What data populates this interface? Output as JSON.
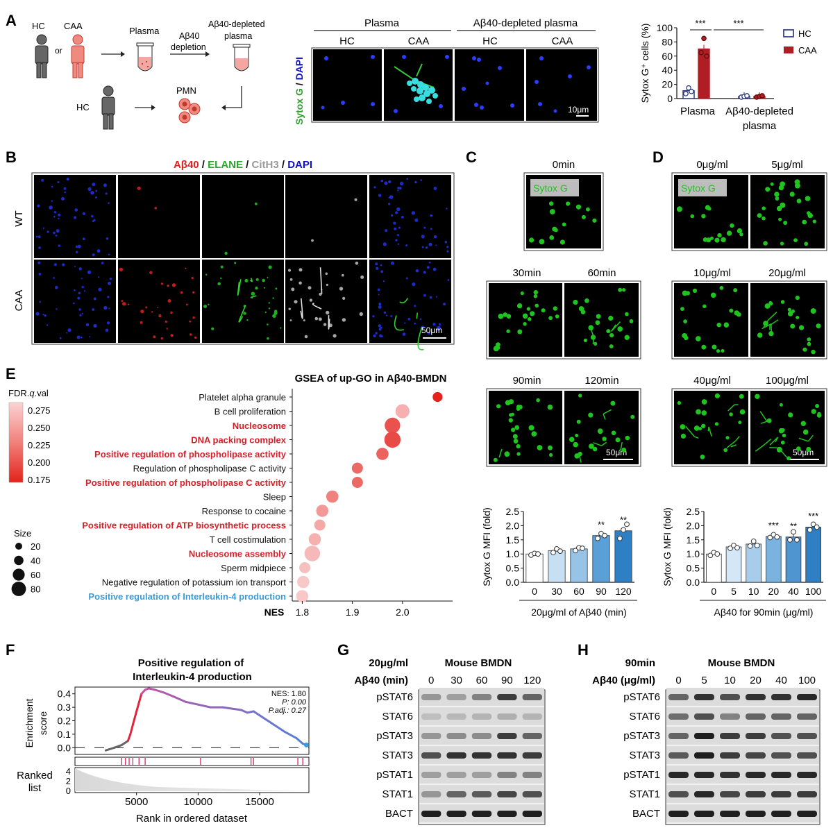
{
  "panels": {
    "A": "A",
    "B": "B",
    "C": "C",
    "D": "D",
    "E": "E",
    "F": "F",
    "G": "G",
    "H": "H"
  },
  "colors": {
    "caa_red": "#b01e25",
    "hc_blue": "#1f2d7a",
    "stain_green": "#1fc41f",
    "dapi_blue": "#1010c8",
    "nes_dark": "#e3231c",
    "nes_light": "#f8c8c8",
    "blue_scale": "#3a86c8",
    "gsea_blue": "#3a9bd9",
    "gsea_purple": "#9b59b6"
  },
  "panelA": {
    "hc": "HC",
    "caa": "CAA",
    "or": "or",
    "plasma": "Plasma",
    "depletion_line1": "Aβ40",
    "depletion_line2": "depletion",
    "depleted_plasma_line1": "Aβ40-depleted",
    "depleted_plasma_line2": "plasma",
    "pmn": "PMN",
    "hc2": "HC",
    "micro_group1": "Plasma",
    "micro_group2": "Aβ40-depleted plasma",
    "micro_cols": [
      "HC",
      "CAA",
      "HC",
      "CAA"
    ],
    "stain_green": "Sytox G",
    "stain_sep": " / ",
    "stain_blue": "DAPI",
    "scalebar": "10μm"
  },
  "chart_data": [
    {
      "id": "A-bar",
      "type": "bar",
      "ylabel": "Sytox G⁺ cells (%)",
      "ylim": [
        0,
        100
      ],
      "yticks": [
        "0",
        "20",
        "40",
        "60",
        "80",
        "100"
      ],
      "categories": [
        "Plasma",
        "Aβ40-depleted plasma"
      ],
      "series": [
        {
          "name": "HC",
          "values": [
            11,
            3
          ],
          "points": [
            [
              7,
              15,
              10
            ],
            [
              2,
              3,
              4
            ]
          ]
        },
        {
          "name": "CAA",
          "values": [
            70,
            3
          ],
          "points": [
            [
              65,
              85,
              60
            ],
            [
              2,
              3,
              4
            ]
          ]
        }
      ],
      "sig": [
        "***",
        "***"
      ],
      "legend": [
        "HC",
        "CAA"
      ],
      "xlabels": [
        "Plasma",
        "Aβ40-depleted",
        "plasma"
      ]
    },
    {
      "id": "C-bar",
      "type": "bar",
      "ylabel": "Sytox G MFI (fold)",
      "ylim": [
        0,
        2.5
      ],
      "yticks": [
        "0.0",
        "0.5",
        "1.0",
        "1.5",
        "2.0",
        "2.5"
      ],
      "categories": [
        "0",
        "30",
        "60",
        "90",
        "120"
      ],
      "values": [
        1.0,
        1.12,
        1.18,
        1.65,
        1.82
      ],
      "points": [
        [
          0.96,
          1.02,
          1.0
        ],
        [
          1.05,
          1.18,
          1.1
        ],
        [
          1.12,
          1.22,
          1.2
        ],
        [
          1.55,
          1.72,
          1.65
        ],
        [
          1.55,
          1.85,
          2.05
        ]
      ],
      "sig": [
        "",
        "",
        "",
        "**",
        "**"
      ],
      "xlabel": "20μg/ml of Aβ40 (min)"
    },
    {
      "id": "D-bar",
      "type": "bar",
      "ylabel": "Sytox G MFI (fold)",
      "ylim": [
        0,
        2.5
      ],
      "yticks": [
        "0.0",
        "0.5",
        "1.0",
        "1.5",
        "2.0",
        "2.5"
      ],
      "categories": [
        "0",
        "5",
        "10",
        "20",
        "40",
        "100"
      ],
      "values": [
        1.0,
        1.25,
        1.35,
        1.62,
        1.6,
        1.95
      ],
      "points": [
        [
          0.95,
          1.05,
          1.0
        ],
        [
          1.2,
          1.3,
          1.22
        ],
        [
          1.28,
          1.45,
          1.3
        ],
        [
          1.58,
          1.68,
          1.6
        ],
        [
          1.5,
          1.78,
          1.5
        ],
        [
          1.85,
          2.05,
          1.95
        ]
      ],
      "sig": [
        "",
        "",
        "",
        "***",
        "**",
        "***"
      ],
      "xlabel": "Aβ40 for 90min (μg/ml)"
    },
    {
      "id": "E-dot",
      "type": "scatter",
      "title": "GSEA of up-GO in Aβ40-BMDN",
      "xlabel": "NES",
      "xlim": [
        1.78,
        2.1
      ],
      "xticks": [
        "1.8",
        "1.9",
        "2.0"
      ],
      "terms": [
        {
          "label": "Platelet alpha granule",
          "nes": 2.07,
          "size": 10,
          "fdr": 0.17,
          "color": "black"
        },
        {
          "label": "B cell proliferation",
          "nes": 2.0,
          "size": 30,
          "fdr": 0.26,
          "color": "black"
        },
        {
          "label": "Nucleosome",
          "nes": 1.98,
          "size": 40,
          "fdr": 0.2,
          "color": "red"
        },
        {
          "label": "DNA packing complex",
          "nes": 1.98,
          "size": 45,
          "fdr": 0.195,
          "color": "red"
        },
        {
          "label": "Positive regulation of phospholipase activity",
          "nes": 1.96,
          "size": 20,
          "fdr": 0.21,
          "color": "red"
        },
        {
          "label": "Regulation of phospholipase C activity",
          "nes": 1.91,
          "size": 15,
          "fdr": 0.215,
          "color": "black"
        },
        {
          "label": "Positive regulation of phospholipase C activity",
          "nes": 1.91,
          "size": 15,
          "fdr": 0.215,
          "color": "red"
        },
        {
          "label": "Sleep",
          "nes": 1.86,
          "size": 20,
          "fdr": 0.23,
          "color": "black"
        },
        {
          "label": "Response to cocaine",
          "nes": 1.84,
          "size": 20,
          "fdr": 0.245,
          "color": "black"
        },
        {
          "label": "Positive regulation of ATP biosynthetic process",
          "nes": 1.835,
          "size": 15,
          "fdr": 0.255,
          "color": "red"
        },
        {
          "label": "T cell costimulation",
          "nes": 1.825,
          "size": 20,
          "fdr": 0.26,
          "color": "black"
        },
        {
          "label": "Nucleosome assembly",
          "nes": 1.82,
          "size": 40,
          "fdr": 0.265,
          "color": "red"
        },
        {
          "label": "Sperm midpiece",
          "nes": 1.805,
          "size": 15,
          "fdr": 0.27,
          "color": "black"
        },
        {
          "label": "Negative regulation of potassium ion transport",
          "nes": 1.802,
          "size": 20,
          "fdr": 0.275,
          "color": "black"
        },
        {
          "label": "Positive regulation of Interleukin-4 production",
          "nes": 1.8,
          "size": 20,
          "fdr": 0.275,
          "color": "blue"
        }
      ],
      "fdr_legend_title": "FDR.q.val",
      "fdr_ticks": [
        "0.275",
        "0.250",
        "0.225",
        "0.200",
        "0.175"
      ],
      "size_legend_title": "Size",
      "size_ticks": [
        "20",
        "40",
        "60",
        "80"
      ]
    },
    {
      "id": "F-gsea",
      "type": "line",
      "title_line1": "Positive regulation of",
      "title_line2": "Interleukin-4 production",
      "ylabel_line1": "Enrichment",
      "ylabel_line2": "score",
      "ylim": [
        -0.05,
        0.45
      ],
      "yticks": [
        "0.0",
        "0.1",
        "0.2",
        "0.3",
        "0.4"
      ],
      "xlim": [
        0,
        19000
      ],
      "xticks": [
        "5000",
        "10000",
        "15000"
      ],
      "xlabel": "Rank in ordered dataset",
      "rank_ylabel_line1": "Ranked",
      "rank_ylabel_line2": "list",
      "rank_yticks": [
        "0",
        "2",
        "4"
      ],
      "stats": {
        "nes": "NES: 1.80",
        "p": "P: 0.00",
        "padj": "P.adj.: 0.27"
      },
      "es_x": [
        2500,
        3200,
        3800,
        4300,
        4500,
        4700,
        5000,
        5400,
        5700,
        6000,
        6500,
        7200,
        8000,
        9000,
        10000,
        11000,
        12000,
        13500,
        14000,
        14500,
        15000,
        16000,
        17000,
        18000,
        18500,
        18800
      ],
      "es_y": [
        -0.02,
        0.0,
        0.02,
        0.05,
        0.1,
        0.17,
        0.27,
        0.4,
        0.43,
        0.44,
        0.43,
        0.41,
        0.38,
        0.34,
        0.32,
        0.3,
        0.3,
        0.28,
        0.26,
        0.27,
        0.24,
        0.18,
        0.12,
        0.07,
        0.03,
        0.02
      ],
      "hits": [
        3800,
        4100,
        4400,
        4700,
        5200,
        5700,
        10200,
        14300,
        14500,
        18100,
        18500
      ]
    }
  ],
  "panelB": {
    "title_parts": [
      "Aβ40",
      " / ",
      "ELANE",
      " / ",
      "CitH3",
      " / ",
      "DAPI"
    ],
    "rows": [
      "WT",
      "CAA"
    ],
    "scalebar": "50μm"
  },
  "panelC": {
    "labels": [
      "0min",
      "30min",
      "60min",
      "90min",
      "120min"
    ],
    "stain": "Sytox G",
    "scalebar": "50μm"
  },
  "panelD": {
    "labels": [
      "0μg/ml",
      "5μg/ml",
      "10μg/ml",
      "20μg/ml",
      "40μg/ml",
      "100μg/ml"
    ],
    "stain": "Sytox G",
    "scalebar": "50μm"
  },
  "panelE": {
    "nes_label": "NES"
  },
  "panelG": {
    "dose": "20μg/ml",
    "treat": "Aβ40 (min)",
    "header": "Mouse BMDN",
    "lanes": [
      "0",
      "30",
      "60",
      "90",
      "120"
    ],
    "rows": [
      "pSTAT6",
      "STAT6",
      "pSTAT3",
      "STAT3",
      "pSTAT1",
      "STAT1",
      "BACT"
    ]
  },
  "panelH": {
    "dose": "90min",
    "treat": "Aβ40 (μg/ml)",
    "header": "Mouse BMDN",
    "lanes": [
      "0",
      "5",
      "10",
      "20",
      "40",
      "100"
    ],
    "rows": [
      "pSTAT6",
      "STAT6",
      "pSTAT3",
      "STAT3",
      "pSTAT1",
      "STAT1",
      "BACT"
    ]
  }
}
